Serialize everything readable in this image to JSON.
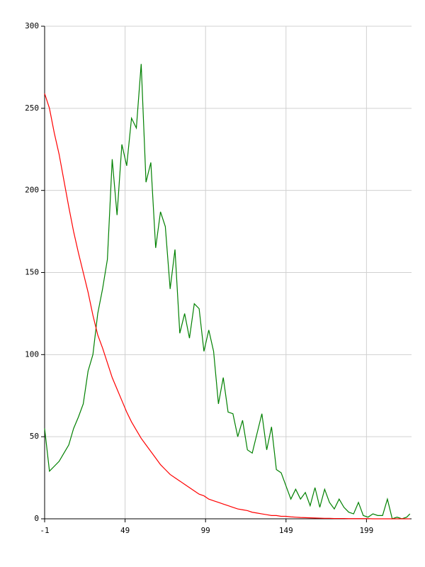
{
  "chart_data": {
    "type": "line",
    "x": [
      -1,
      2,
      5,
      8,
      11,
      14,
      17,
      20,
      23,
      26,
      29,
      32,
      35,
      38,
      41,
      44,
      47,
      50,
      53,
      56,
      59,
      62,
      65,
      68,
      71,
      74,
      77,
      80,
      83,
      86,
      89,
      92,
      95,
      98,
      101,
      104,
      107,
      110,
      113,
      116,
      119,
      122,
      125,
      128,
      131,
      134,
      137,
      140,
      143,
      146,
      149,
      152,
      155,
      158,
      161,
      164,
      167,
      170,
      173,
      176,
      179,
      182,
      185,
      188,
      191,
      194,
      197,
      200,
      203,
      206,
      209,
      212,
      215,
      218,
      221,
      224,
      226
    ],
    "series": [
      {
        "color": "#008000",
        "values": [
          55,
          29,
          32,
          35,
          40,
          45,
          55,
          62,
          70,
          90,
          100,
          125,
          140,
          158,
          219,
          185,
          228,
          215,
          244,
          238,
          277,
          205,
          217,
          165,
          187,
          178,
          140,
          164,
          113,
          125,
          110,
          131,
          128,
          102,
          115,
          102,
          70,
          86,
          65,
          64,
          50,
          60,
          42,
          40,
          52,
          64,
          42,
          56,
          30,
          28,
          20,
          12,
          18,
          12,
          16,
          8,
          19,
          7,
          18,
          10,
          6,
          12,
          7,
          4,
          3,
          10,
          2,
          1,
          3,
          2,
          2,
          12,
          0,
          1,
          0,
          1,
          3
        ]
      },
      {
        "color": "#ff0000",
        "values": [
          259,
          250,
          235,
          222,
          206,
          190,
          175,
          162,
          150,
          138,
          124,
          112,
          104,
          95,
          86,
          79,
          72,
          65,
          59,
          54,
          49,
          45,
          41,
          37,
          33,
          30,
          27,
          25,
          23,
          21,
          19,
          17,
          15,
          14,
          12,
          11,
          10,
          9,
          8,
          7,
          6,
          5.5,
          5,
          4,
          3.5,
          3,
          2.5,
          2,
          2,
          1.5,
          1.5,
          1.2,
          1,
          0.8,
          0.7,
          0.6,
          0.5,
          0.4,
          0.3,
          0.3,
          0.2,
          0.2,
          0.2,
          0.1,
          0.1,
          0.1,
          0.1,
          0.1,
          0,
          0,
          0,
          0,
          0,
          0,
          0,
          0,
          0
        ]
      }
    ],
    "xlim": [
      -1,
      227
    ],
    "xticks": [
      -1,
      49,
      99,
      149,
      199
    ],
    "ylim": [
      0,
      300
    ],
    "yticks": [
      0,
      50,
      100,
      150,
      200,
      250,
      300
    ],
    "grid": true
  }
}
